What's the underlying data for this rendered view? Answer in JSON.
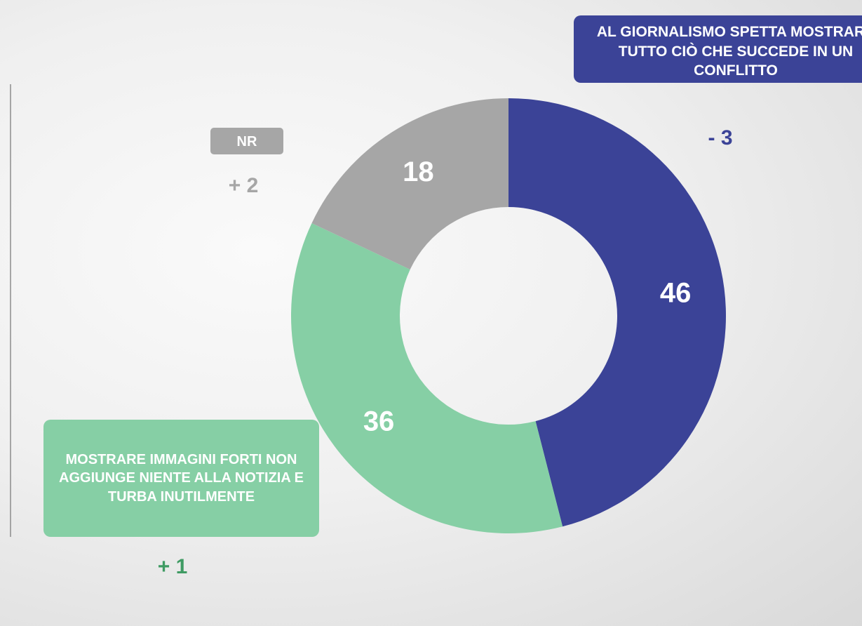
{
  "chart_data": {
    "type": "pie",
    "donut": true,
    "categories": [
      "AL GIORNALISMO SPETTA MOSTRARE TUTTO CIÒ CHE SUCCEDE IN UN CONFLITTO",
      "MOSTRARE IMMAGINI FORTI NON AGGIUNGE NIENTE ALLA NOTIZIA E TURBA INUTILMENTE",
      "NR"
    ],
    "values": [
      46,
      36,
      18
    ],
    "colors": [
      "#3b4397",
      "#86cfa5",
      "#a6a6a6"
    ],
    "annotations": [
      "- 3",
      "+ 1",
      "+ 2"
    ]
  }
}
